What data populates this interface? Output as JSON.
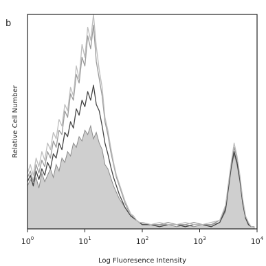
{
  "corner_mark": "b",
  "chart_data": {
    "type": "area",
    "title": "",
    "xlabel": "Log Fluoresence Intensity",
    "ylabel": "Relative Cell Number",
    "x_scale": "log",
    "xlim": [
      1,
      10000
    ],
    "ylim": [
      0,
      100
    ],
    "grid": false,
    "legend": "none",
    "x_ticks": [
      {
        "base": "10",
        "exp": "0",
        "value": 1
      },
      {
        "base": "10",
        "exp": "1",
        "value": 10
      },
      {
        "base": "10",
        "exp": "2",
        "value": 100
      },
      {
        "base": "10",
        "exp": "3",
        "value": 1000
      },
      {
        "base": "10",
        "exp": "4",
        "value": 10000
      }
    ],
    "series": [
      {
        "role": "control-filled",
        "color": "#cfcfcf",
        "x": [
          1,
          1.12,
          1.26,
          1.41,
          1.58,
          1.78,
          2.0,
          2.24,
          2.51,
          2.82,
          3.16,
          3.55,
          3.98,
          4.47,
          5.01,
          5.62,
          6.31,
          7.08,
          7.94,
          8.91,
          10.0,
          11.2,
          12.6,
          14.1,
          15.8,
          17.8,
          20.0,
          22.4,
          25.1,
          28.2,
          31.6,
          35.5,
          39.8,
          44.7,
          50.1,
          56.2,
          63.1,
          70.8,
          79.4,
          89.1,
          100,
          141,
          200,
          282,
          398,
          562,
          794,
          1122,
          1585,
          2239,
          2818,
          3162,
          3548,
          3981,
          4467,
          5012,
          5623,
          6310,
          7079,
          7943,
          8913
        ],
        "y": [
          20,
          23,
          21,
          24,
          19,
          26,
          22,
          25,
          28,
          24,
          30,
          27,
          33,
          31,
          36,
          34,
          40,
          38,
          43,
          41,
          46,
          44,
          48,
          42,
          45,
          40,
          37,
          30,
          28,
          24,
          20,
          17,
          14,
          12,
          10,
          8,
          6,
          5,
          4,
          3,
          3,
          2,
          2,
          2,
          1,
          2,
          1,
          2,
          2,
          3,
          8,
          18,
          28,
          35,
          30,
          22,
          12,
          5,
          2,
          1,
          1
        ]
      },
      {
        "role": "stained-1",
        "color": "#9a9a9a",
        "x": [
          1,
          1.12,
          1.26,
          1.41,
          1.58,
          1.78,
          2.0,
          2.24,
          2.51,
          2.82,
          3.16,
          3.55,
          3.98,
          4.47,
          5.01,
          5.62,
          6.31,
          7.08,
          7.94,
          8.91,
          10.0,
          11.2,
          12.6,
          14.1,
          15.8,
          17.8,
          20.0,
          22.4,
          25.1,
          28.2,
          31.6,
          35.5,
          39.8,
          44.7,
          50.1,
          56.2,
          63.1,
          70.8,
          79.4,
          89.1,
          100,
          141,
          200,
          282,
          398,
          562,
          794,
          1122,
          1585,
          2239,
          2818,
          3162,
          3548,
          3981,
          4467,
          5012,
          5623,
          6310,
          7079,
          7943,
          8913
        ],
        "y": [
          24,
          27,
          22,
          30,
          26,
          32,
          29,
          36,
          33,
          41,
          38,
          46,
          44,
          55,
          52,
          63,
          60,
          72,
          68,
          80,
          76,
          90,
          84,
          95,
          78,
          70,
          62,
          50,
          44,
          36,
          30,
          24,
          20,
          16,
          12,
          9,
          7,
          5,
          4,
          3,
          3,
          2,
          2,
          3,
          2,
          2,
          3,
          2,
          2,
          4,
          10,
          20,
          30,
          38,
          33,
          24,
          13,
          6,
          2,
          1,
          1
        ]
      },
      {
        "role": "stained-2",
        "color": "#444444",
        "x": [
          1,
          1.12,
          1.26,
          1.41,
          1.58,
          1.78,
          2.0,
          2.24,
          2.51,
          2.82,
          3.16,
          3.55,
          3.98,
          4.47,
          5.01,
          5.62,
          6.31,
          7.08,
          7.94,
          8.91,
          10.0,
          11.2,
          12.6,
          14.1,
          15.8,
          17.8,
          20.0,
          22.4,
          25.1,
          28.2,
          31.6,
          35.5,
          39.8,
          44.7,
          50.1,
          56.2,
          63.1,
          70.8,
          79.4,
          89.1,
          100,
          141,
          200,
          282,
          398,
          562,
          794,
          1122,
          1585,
          2239,
          2818,
          3162,
          3548,
          3981,
          4467,
          5012,
          5623,
          6310,
          7079,
          7943,
          8913
        ],
        "y": [
          22,
          25,
          20,
          27,
          23,
          28,
          25,
          31,
          28,
          35,
          33,
          40,
          37,
          45,
          43,
          50,
          47,
          56,
          53,
          60,
          57,
          64,
          60,
          67,
          58,
          55,
          48,
          40,
          35,
          29,
          24,
          20,
          16,
          13,
          10,
          8,
          6,
          5,
          4,
          3,
          2,
          2,
          1,
          2,
          2,
          1,
          2,
          2,
          1,
          3,
          9,
          19,
          29,
          36,
          31,
          23,
          12,
          5,
          2,
          1,
          1
        ]
      },
      {
        "role": "stained-3",
        "color": "#bdbdbd",
        "x": [
          1,
          1.12,
          1.26,
          1.41,
          1.58,
          1.78,
          2.0,
          2.24,
          2.51,
          2.82,
          3.16,
          3.55,
          3.98,
          4.47,
          5.01,
          5.62,
          6.31,
          7.08,
          7.94,
          8.91,
          10.0,
          11.2,
          12.6,
          14.1,
          15.8,
          17.8,
          20.0,
          22.4,
          25.1,
          28.2,
          31.6,
          35.5,
          39.8,
          44.7,
          50.1,
          56.2,
          63.1,
          70.8,
          79.4,
          89.1,
          100,
          141,
          200,
          282,
          398,
          562,
          794,
          1122,
          1585,
          2239,
          2818,
          3162,
          3548,
          3981,
          4467,
          5012,
          5623,
          6310,
          7079,
          7943,
          8913
        ],
        "y": [
          26,
          30,
          25,
          33,
          29,
          36,
          32,
          40,
          37,
          45,
          42,
          51,
          48,
          58,
          55,
          66,
          62,
          76,
          70,
          86,
          80,
          94,
          88,
          100,
          85,
          74,
          66,
          52,
          46,
          38,
          31,
          25,
          21,
          17,
          13,
          10,
          7,
          6,
          4,
          3,
          3,
          2,
          3,
          2,
          2,
          3,
          2,
          2,
          3,
          4,
          11,
          21,
          31,
          40,
          34,
          25,
          14,
          6,
          3,
          1,
          1
        ]
      }
    ]
  }
}
